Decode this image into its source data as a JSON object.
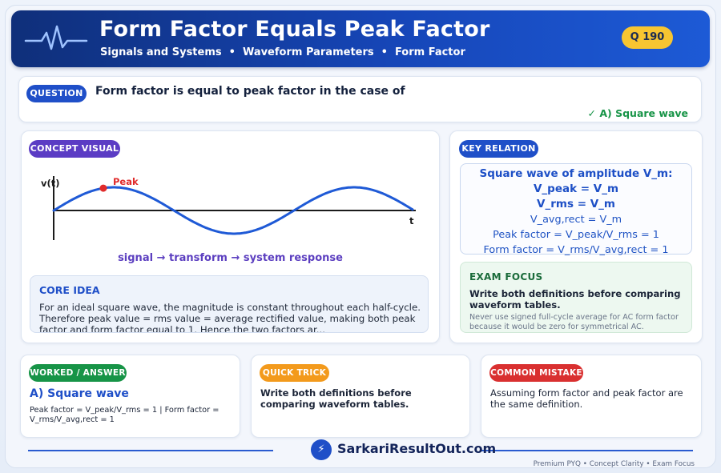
{
  "header": {
    "title": "Form Factor Equals Peak Factor",
    "breadcrumb": [
      "Signals and Systems",
      "Waveform Parameters",
      "Form Factor"
    ],
    "separator": "•",
    "question_number": "Q 190",
    "icon": "pulse-wave-icon",
    "colors": {
      "gradient_start": "#0f2f7a",
      "gradient_end": "#1d5ad6",
      "badge": "#f7c531"
    }
  },
  "question": {
    "tag": "QUESTION",
    "text": "Form factor is equal to peak factor in the case of",
    "answer": "✓ A) Square wave"
  },
  "concept": {
    "tag": "CONCEPT VISUAL",
    "plot": {
      "y_label": "v(t)",
      "x_label": "t",
      "peak_label": "Peak",
      "wave_color": "#1f5ad6",
      "peak_color": "#e02b2b"
    },
    "caption": "signal → transform → system response",
    "core_title": "CORE IDEA",
    "core_text": "For an ideal square wave, the magnitude is constant throughout each half-cycle. Therefore peak value = rms value = average rectified value, making both peak factor and form factor equal to 1. Hence the two factors ar..."
  },
  "key_relation": {
    "tag": "KEY RELATION",
    "lines_bold": [
      "Square wave of amplitude V_m:",
      "V_peak = V_m",
      "V_rms = V_m"
    ],
    "lines": [
      "V_avg,rect = V_m",
      "Peak factor = V_peak/V_rms = 1",
      "Form factor = V_rms/V_avg,rect = 1"
    ],
    "exam_title": "EXAM FOCUS",
    "exam_main": "Write both definitions before comparing waveform tables.",
    "exam_note": "Never use signed full-cycle average for AC form factor because it would be zero for symmetrical AC."
  },
  "worked": {
    "tag": "WORKED / ANSWER",
    "answer": "A) Square wave",
    "text": "Peak factor = V_peak/V_rms = 1 | Form factor = V_rms/V_avg,rect = 1"
  },
  "trick": {
    "tag": "QUICK TRICK",
    "text": "Write both definitions before comparing waveform tables."
  },
  "mistake": {
    "tag": "COMMON MISTAKE",
    "text": "Assuming form factor and peak factor are the same definition."
  },
  "footer": {
    "logo_glyph": "⚡",
    "brand": "SarkariResultOut.com",
    "tagline": "Premium PYQ • Concept Clarity • Exam Focus"
  }
}
